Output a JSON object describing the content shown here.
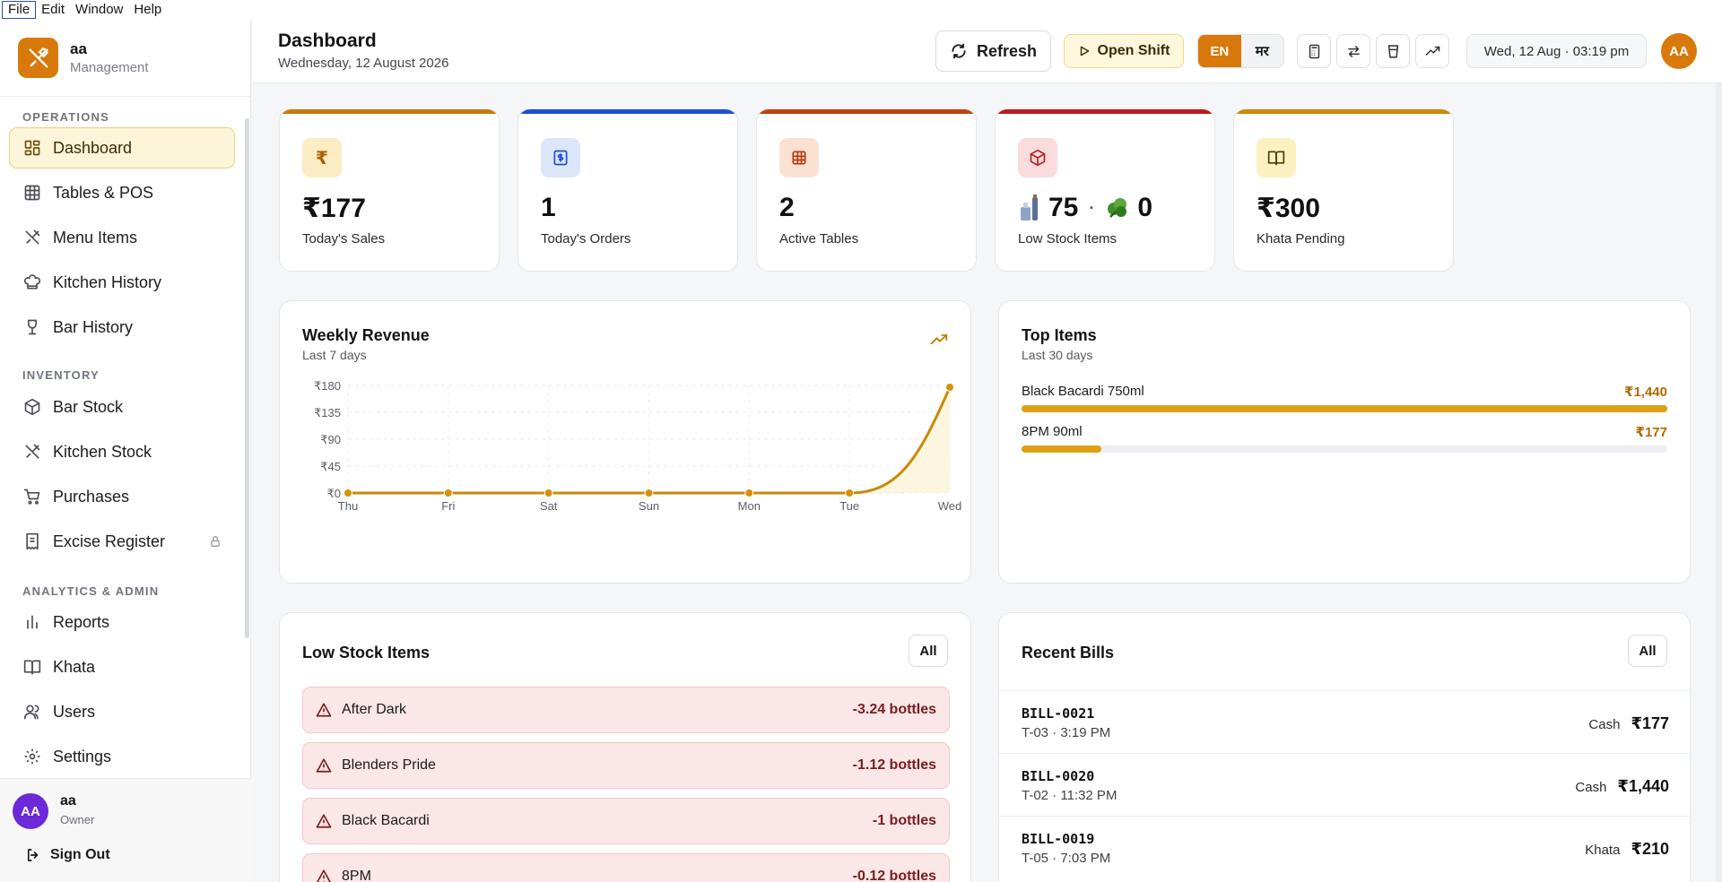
{
  "menubar": [
    "File",
    "Edit",
    "Window",
    "Help"
  ],
  "brand": {
    "name": "aa",
    "subtitle": "Management"
  },
  "sidebar": {
    "sections": [
      {
        "title": "OPERATIONS",
        "items": [
          {
            "label": "Dashboard",
            "icon": "dashboard-icon",
            "active": true
          },
          {
            "label": "Tables & POS",
            "icon": "grid-icon"
          },
          {
            "label": "Menu Items",
            "icon": "utensils-icon"
          },
          {
            "label": "Kitchen History",
            "icon": "chef-hat-icon"
          },
          {
            "label": "Bar History",
            "icon": "wine-glass-icon"
          }
        ]
      },
      {
        "title": "INVENTORY",
        "items": [
          {
            "label": "Bar Stock",
            "icon": "box-icon"
          },
          {
            "label": "Kitchen Stock",
            "icon": "utensils-icon"
          },
          {
            "label": "Purchases",
            "icon": "cart-icon"
          },
          {
            "label": "Excise Register",
            "icon": "receipt-icon",
            "locked": true
          }
        ]
      },
      {
        "title": "ANALYTICS & ADMIN",
        "items": [
          {
            "label": "Reports",
            "icon": "bar-chart-icon"
          },
          {
            "label": "Khata",
            "icon": "book-icon"
          },
          {
            "label": "Users",
            "icon": "users-icon"
          },
          {
            "label": "Settings",
            "icon": "gear-icon"
          }
        ]
      }
    ],
    "user": {
      "initials": "AA",
      "name": "aa",
      "role": "Owner"
    },
    "sign_out": "Sign Out"
  },
  "header": {
    "title": "Dashboard",
    "date": "Wednesday, 12 August 2026",
    "refresh_label": "Refresh",
    "open_shift_label": "Open Shift",
    "lang_en": "EN",
    "lang_mr": "मर",
    "datetime": "Wed, 12 Aug · 03:19 pm",
    "avatar": "AA"
  },
  "stats": [
    {
      "value": "₹177",
      "label": "Today's Sales",
      "accent": "#c9780a",
      "icon": "rupee-icon"
    },
    {
      "value": "1",
      "label": "Today's Orders",
      "accent": "#1d4ed8",
      "icon": "receipt-dollar-icon"
    },
    {
      "value": "2",
      "label": "Active Tables",
      "accent": "#c2410c",
      "icon": "table-grid-icon"
    },
    {
      "value_bar": "75",
      "value_kitchen": "0",
      "separator": "·",
      "label": "Low Stock Items",
      "accent": "#b91c1c",
      "icon": "package-icon"
    },
    {
      "value": "₹300",
      "label": "Khata Pending",
      "accent": "#ca8a04",
      "icon": "open-book-icon"
    }
  ],
  "weekly_revenue": {
    "title": "Weekly Revenue",
    "subtitle": "Last 7 days",
    "icon": "trending-up-icon"
  },
  "chart_data": {
    "type": "area",
    "title": "Weekly Revenue",
    "subtitle": "Last 7 days",
    "categories": [
      "Thu",
      "Fri",
      "Sat",
      "Sun",
      "Mon",
      "Tue",
      "Wed"
    ],
    "values": [
      0,
      0,
      0,
      0,
      0,
      0,
      177
    ],
    "y_ticks": [
      "₹0",
      "₹45",
      "₹90",
      "₹135",
      "₹180"
    ],
    "ylim": [
      0,
      180
    ],
    "grid": true,
    "color": "#c98a0a"
  },
  "top_items": {
    "title": "Top Items",
    "subtitle": "Last 30 days",
    "items": [
      {
        "name": "Black Bacardi 750ml",
        "amount": "₹1,440",
        "fraction": 1.0
      },
      {
        "name": "8PM 90ml",
        "amount": "₹177",
        "fraction": 0.123
      }
    ]
  },
  "low_stock": {
    "title": "Low Stock Items",
    "all_label": "All",
    "items": [
      {
        "name": "After Dark",
        "qty": "-3.24 bottles"
      },
      {
        "name": "Blenders Pride",
        "qty": "-1.12 bottles"
      },
      {
        "name": "Black Bacardi",
        "qty": "-1 bottles"
      },
      {
        "name": "8PM",
        "qty": "-0.12 bottles"
      }
    ]
  },
  "recent_bills": {
    "title": "Recent Bills",
    "all_label": "All",
    "bills": [
      {
        "id": "BILL-0021",
        "meta": "T-03 · 3:19 PM",
        "method": "Cash",
        "amount": "₹177"
      },
      {
        "id": "BILL-0020",
        "meta": "T-02 · 11:32 PM",
        "method": "Cash",
        "amount": "₹1,440"
      },
      {
        "id": "BILL-0019",
        "meta": "T-05 · 7:03 PM",
        "method": "Khata",
        "amount": "₹210"
      }
    ]
  }
}
